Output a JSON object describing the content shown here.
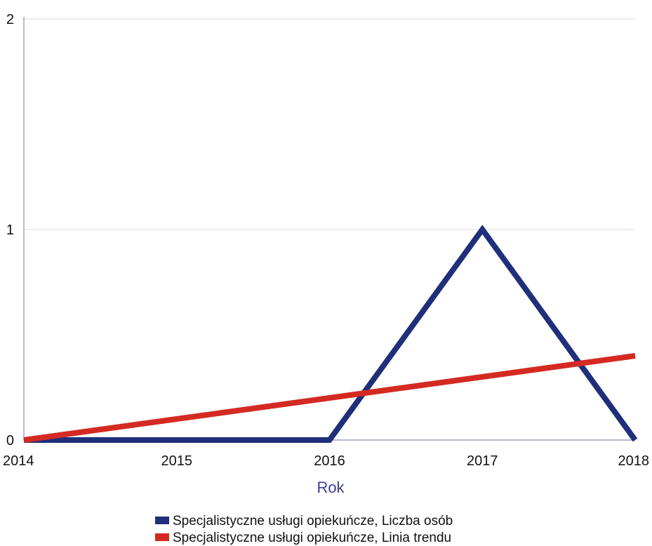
{
  "chart_data": {
    "type": "line",
    "x": [
      "2014",
      "2015",
      "2016",
      "2017",
      "2018"
    ],
    "xlabel": "Rok",
    "ylabel": "",
    "ylim": [
      0,
      2
    ],
    "yticks": [
      "0",
      "1",
      "2"
    ],
    "grid": "horizontal",
    "legend_position": "bottom",
    "series": [
      {
        "name": "Specjalistyczne usługi opiekuńcze, Liczba osób",
        "color": "#1f2f7a",
        "values": [
          0,
          0,
          0,
          1,
          0
        ]
      },
      {
        "name": "Specjalistyczne usługi opiekuńcze, Linia trendu",
        "color": "#d42a22",
        "values": [
          0,
          0.1,
          0.2,
          0.3,
          0.4
        ]
      }
    ],
    "colors": {
      "axis_title": "#3a3f8f",
      "grid": "#d6d8e8",
      "axis": "#8a8fb8"
    }
  }
}
